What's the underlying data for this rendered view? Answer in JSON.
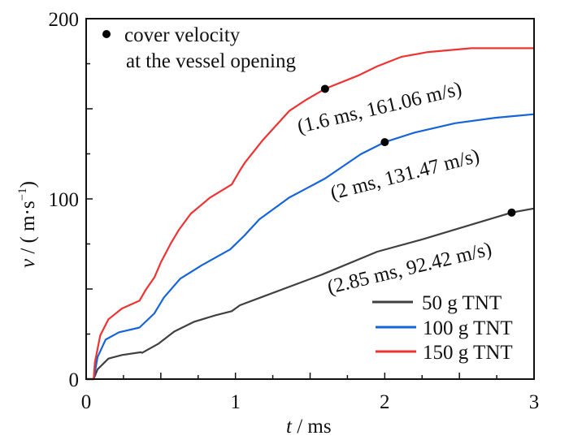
{
  "chart_data": {
    "type": "line",
    "title": "",
    "xlabel_var": "t",
    "xlabel_unit": " / ms",
    "ylabel_var": "v",
    "ylabel_unit": " / ( m·s",
    "ylabel_sup": "−1",
    "ylabel_close": ")",
    "xlim": [
      0,
      3
    ],
    "ylim": [
      0,
      200
    ],
    "xticks": [
      0,
      1,
      2,
      3
    ],
    "xtick_labels": [
      "0",
      "1",
      "2",
      "3"
    ],
    "xminor_step": 0.25,
    "yticks": [
      0,
      100,
      200
    ],
    "ytick_labels": [
      "0",
      "100",
      "200"
    ],
    "yminor_step": 25,
    "grid": false,
    "legend_position": "bottom-right",
    "series": [
      {
        "name": "50 g TNT",
        "color": "#404040",
        "points": [
          [
            0,
            0
          ],
          [
            0.05,
            0
          ],
          [
            0.076,
            5.4
          ],
          [
            0.149,
            11.4
          ],
          [
            0.24,
            13.4
          ],
          [
            0.366,
            14.9
          ],
          [
            0.375,
            14.6
          ],
          [
            0.485,
            19.7
          ],
          [
            0.59,
            26.4
          ],
          [
            0.72,
            31.7
          ],
          [
            0.865,
            35.4
          ],
          [
            0.975,
            37.7
          ],
          [
            1.03,
            41
          ],
          [
            1.165,
            45.2
          ],
          [
            1.58,
            58.0
          ],
          [
            1.95,
            70.7
          ],
          [
            2.25,
            77.5
          ],
          [
            2.58,
            85.7
          ],
          [
            2.85,
            92.42
          ],
          [
            3.0,
            94.7
          ]
        ]
      },
      {
        "name": "100 g TNT",
        "color": "#1565d8",
        "points": [
          [
            0,
            0
          ],
          [
            0.05,
            0
          ],
          [
            0.076,
            12.2
          ],
          [
            0.13,
            21.9
          ],
          [
            0.22,
            26.0
          ],
          [
            0.357,
            28.6
          ],
          [
            0.457,
            36.5
          ],
          [
            0.52,
            45.2
          ],
          [
            0.63,
            55.7
          ],
          [
            0.775,
            63.2
          ],
          [
            0.965,
            72.0
          ],
          [
            1.06,
            79.7
          ],
          [
            1.16,
            88.7
          ],
          [
            1.36,
            100.7
          ],
          [
            1.6,
            111.3
          ],
          [
            1.84,
            124.8
          ],
          [
            2.0,
            131.47
          ],
          [
            2.2,
            136.8
          ],
          [
            2.47,
            142.0
          ],
          [
            2.74,
            145.0
          ],
          [
            3.0,
            147.0
          ]
        ]
      },
      {
        "name": "150 g TNT",
        "color": "#ee3333",
        "points": [
          [
            0,
            0
          ],
          [
            0.05,
            0
          ],
          [
            0.058,
            9.2
          ],
          [
            0.094,
            24.2
          ],
          [
            0.149,
            33.2
          ],
          [
            0.24,
            39.2
          ],
          [
            0.357,
            43.5
          ],
          [
            0.4,
            49.7
          ],
          [
            0.457,
            56.4
          ],
          [
            0.5,
            64.7
          ],
          [
            0.566,
            75.2
          ],
          [
            0.62,
            82.7
          ],
          [
            0.7,
            91.7
          ],
          [
            0.83,
            100.7
          ],
          [
            0.975,
            108.0
          ],
          [
            1.03,
            115.8
          ],
          [
            1.065,
            120.3
          ],
          [
            1.18,
            132.3
          ],
          [
            1.36,
            148.8
          ],
          [
            1.47,
            154.8
          ],
          [
            1.6,
            161.06
          ],
          [
            1.82,
            168.4
          ],
          [
            1.95,
            173.6
          ],
          [
            2.11,
            178.8
          ],
          [
            2.29,
            181.5
          ],
          [
            2.58,
            183.6
          ],
          [
            3.0,
            183.6
          ]
        ]
      }
    ],
    "markers": [
      {
        "series": "150 g TNT",
        "t": 1.6,
        "v": 161.06,
        "label": "(1.6 ms, 161.06 m/s)"
      },
      {
        "series": "100 g TNT",
        "t": 2.0,
        "v": 131.47,
        "label": "(2 ms, 131.47 m/s)"
      },
      {
        "series": "50 g TNT",
        "t": 2.85,
        "v": 92.42,
        "label": "(2.85 ms, 92.42 m/s)"
      }
    ],
    "marker_legend": {
      "line1": "cover velocity",
      "line2": "at the vessel opening"
    }
  }
}
